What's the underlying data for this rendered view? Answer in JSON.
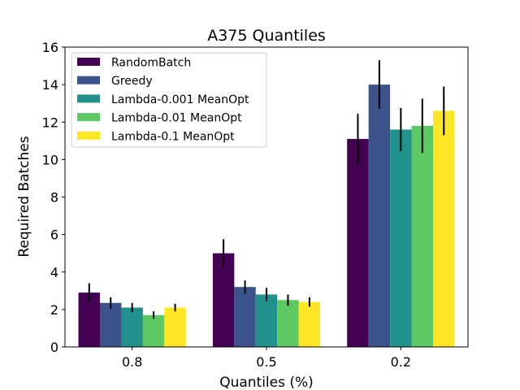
{
  "chart_data": {
    "type": "bar",
    "title": "A375 Quantiles",
    "xlabel": "Quantiles (%)",
    "ylabel": "Required Batches",
    "categories": [
      "0.8",
      "0.5",
      "0.2"
    ],
    "ylim": [
      0,
      16
    ],
    "yticks": [
      0,
      2,
      4,
      6,
      8,
      10,
      12,
      14,
      16
    ],
    "ytick_labels": [
      "0",
      "2",
      "4",
      "6",
      "8",
      "10",
      "12",
      "14",
      "16"
    ],
    "grid": false,
    "legend_position": "top-left",
    "series": [
      {
        "name": "RandomBatch",
        "color": "#440154",
        "values": [
          2.9,
          5.0,
          11.1
        ],
        "errors": [
          0.5,
          0.75,
          1.35
        ]
      },
      {
        "name": "Greedy",
        "color": "#3b528b",
        "values": [
          2.35,
          3.2,
          14.0
        ],
        "errors": [
          0.3,
          0.35,
          1.3
        ]
      },
      {
        "name": "Lambda-0.001 MeanOpt",
        "color": "#21918c",
        "values": [
          2.1,
          2.8,
          11.6
        ],
        "errors": [
          0.25,
          0.35,
          1.15
        ]
      },
      {
        "name": "Lambda-0.01 MeanOpt",
        "color": "#5ec962",
        "values": [
          1.7,
          2.5,
          11.8
        ],
        "errors": [
          0.2,
          0.3,
          1.45
        ]
      },
      {
        "name": "Lambda-0.1 MeanOpt",
        "color": "#fde725",
        "values": [
          2.1,
          2.4,
          12.6
        ],
        "errors": [
          0.2,
          0.25,
          1.3
        ]
      }
    ]
  }
}
